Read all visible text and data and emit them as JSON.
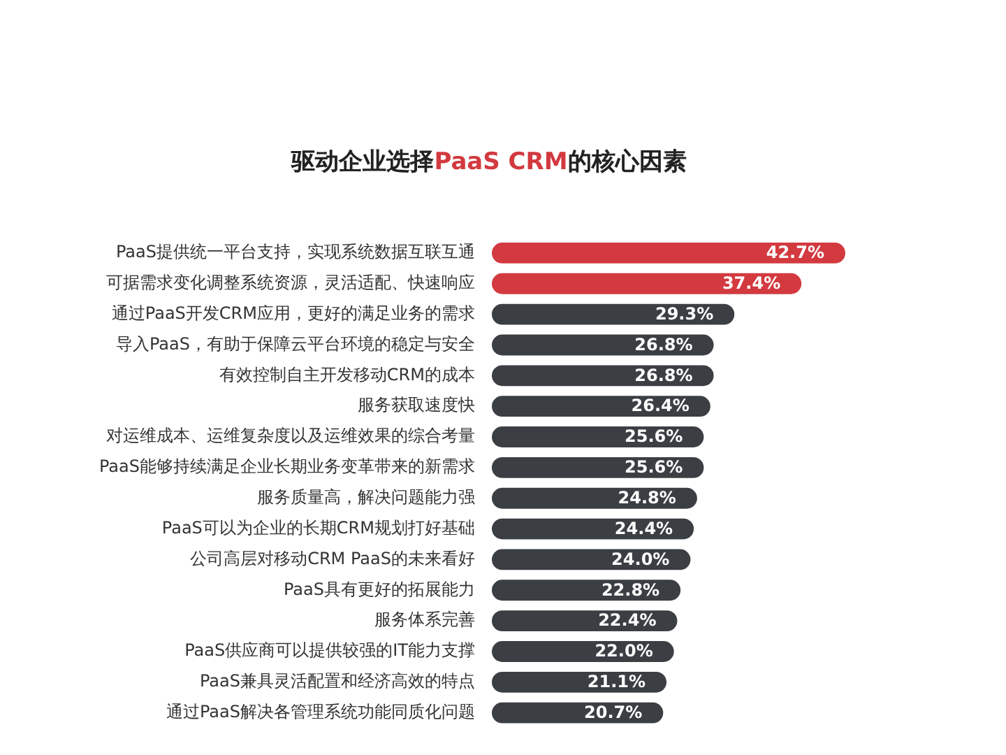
{
  "chart_data": {
    "type": "bar",
    "orientation": "horizontal",
    "title": "驱动企业选择PaaS CRM的核心因素",
    "categories": [
      "PaaS提供统一平台支持，实现系统数据互联互通",
      "可据需求变化调整系统资源，灵活适配、快速响应",
      "通过PaaS开发CRM应用，更好的满足业务的需求",
      "导入PaaS，有助于保障云平台环境的稳定与安全",
      "有效控制自主开发移动CRM的成本",
      "服务获取速度快",
      "对运维成本、运维复杂度以及运维效果的综合考量",
      "PaaS能够持续满足企业长期业务变革带来的新需求",
      "服务质量高，解决问题能力强",
      "PaaS可以为企业的长期CRM规划打好基础",
      "公司高层对移动CRM PaaS的未来看好",
      "PaaS具有更好的拓展能力",
      "服务体系完善",
      "PaaS供应商可以提供较强的IT能力支撑",
      "PaaS兼具灵活配置和经济高效的特点",
      "通过PaaS解决各管理系统功能同质化问题"
    ],
    "values": [
      42.7,
      37.4,
      29.3,
      26.8,
      26.8,
      26.4,
      25.6,
      25.6,
      24.8,
      24.4,
      24.0,
      22.8,
      22.4,
      22.0,
      21.1,
      20.7
    ],
    "colors": [
      "#d23a40",
      "#d23a40",
      "#3b3e43",
      "#3b3e43",
      "#3b3e43",
      "#3b3e43",
      "#3b3e43",
      "#3b3e43",
      "#3b3e43",
      "#3b3e43",
      "#3b3e43",
      "#3b3e43",
      "#3b3e43",
      "#3b3e43",
      "#3b3e43",
      "#3b3e43"
    ],
    "value_labels": [
      "42.7%",
      "37.4%",
      "29.3%",
      "26.8%",
      "26.8%",
      "26.4%",
      "25.6%",
      "25.6%",
      "24.8%",
      "24.4%",
      "24.0%",
      "22.8%",
      "22.4%",
      "22.0%",
      "21.1%",
      "20.7%"
    ],
    "tick_labels": "y"
  }
}
